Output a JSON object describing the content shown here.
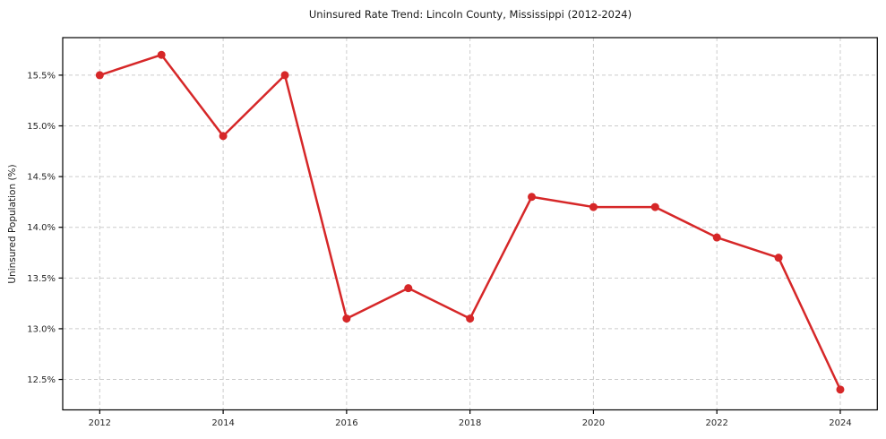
{
  "figure": {
    "title": "Uninsured Rate Trend: Lincoln County, Mississippi (2012-2024)",
    "ylabel": "Uninsured Population (%)"
  },
  "chart_data": {
    "type": "line",
    "title": "Uninsured Rate Trend: Lincoln County, Mississippi (2012-2024)",
    "xlabel": "",
    "ylabel": "Uninsured Population (%)",
    "x": [
      2012,
      2013,
      2014,
      2015,
      2016,
      2017,
      2018,
      2019,
      2020,
      2021,
      2022,
      2023,
      2024
    ],
    "values": [
      15.5,
      15.7,
      14.9,
      15.5,
      13.1,
      13.4,
      13.1,
      14.3,
      14.2,
      14.2,
      13.9,
      13.7,
      12.4
    ],
    "x_ticks": [
      2012,
      2014,
      2016,
      2018,
      2020,
      2022,
      2024
    ],
    "x_tick_labels": [
      "2012",
      "2014",
      "2016",
      "2018",
      "2020",
      "2022",
      "2024"
    ],
    "y_ticks": [
      12.5,
      13.0,
      13.5,
      14.0,
      14.5,
      15.0,
      15.5
    ],
    "y_tick_labels": [
      "12.5%",
      "13.0%",
      "13.5%",
      "14.0%",
      "14.5%",
      "15.0%",
      "15.5%"
    ],
    "xlim": [
      2011.4,
      2024.6
    ],
    "ylim": [
      12.2,
      15.87
    ],
    "grid": true,
    "legend": "none",
    "line_color": "#d62728",
    "marker": "circle",
    "marker_radius": 4.5,
    "line_width": 2.5,
    "grid_color": "#cccccc",
    "spine_color": "#000000",
    "text_color": "#262626",
    "background": "#ffffff"
  }
}
